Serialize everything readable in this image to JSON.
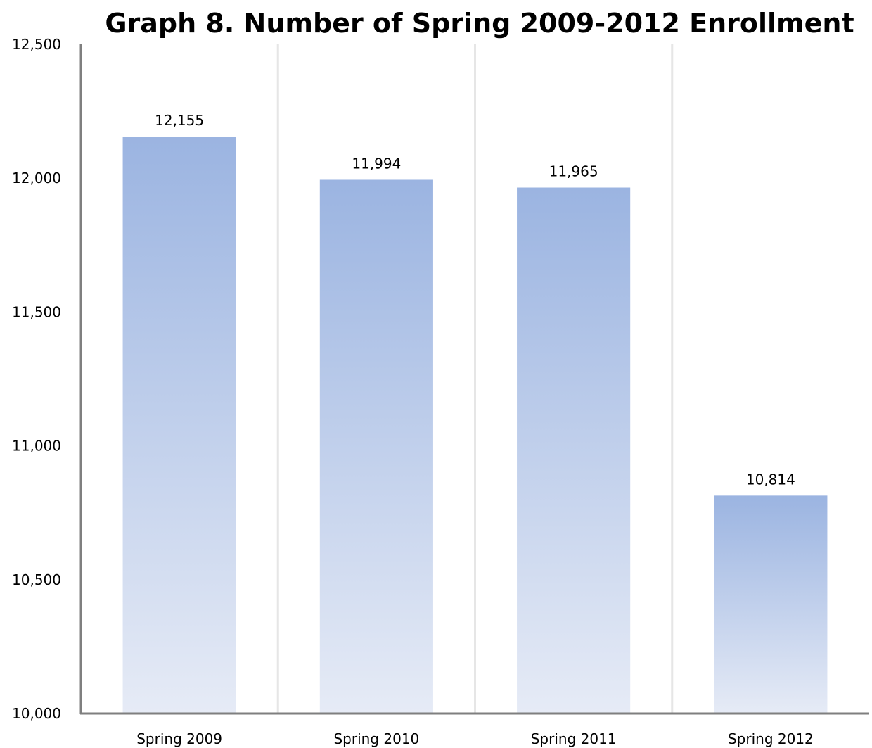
{
  "chart_data": {
    "type": "bar",
    "title": "Graph 8. Number of Spring 2009-2012 Enrollment",
    "xlabel": "",
    "ylabel": "",
    "categories": [
      "Spring 2009",
      "Spring 2010",
      "Spring 2011",
      "Spring 2012"
    ],
    "values": [
      12155,
      11994,
      11965,
      10814
    ],
    "data_labels": [
      "12,155",
      "11,994",
      "11,965",
      "10,814"
    ],
    "ylim": [
      10000,
      12500
    ],
    "y_ticks": [
      10000,
      10500,
      11000,
      11500,
      12000,
      12500
    ],
    "y_tick_labels": [
      "10,000",
      "10,500",
      "11,000",
      "11,500",
      "12,000",
      "12,500"
    ],
    "grid": "vertical separators between categories",
    "legend": "none",
    "colors": {
      "bar_top": "#9bb4e1",
      "bar_bottom": "#e6ebf6",
      "axis": "#7f7f7f",
      "separator": "#e6e6e6"
    }
  }
}
